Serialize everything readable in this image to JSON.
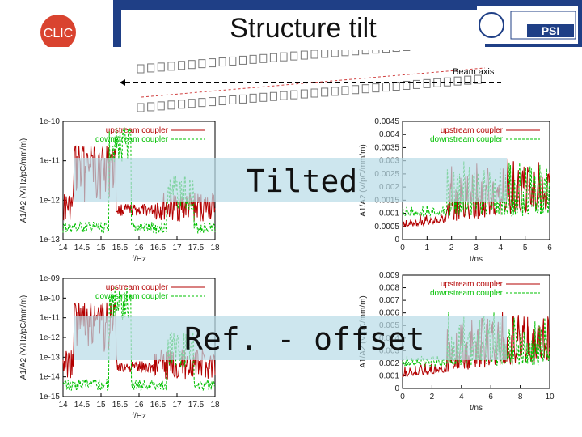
{
  "slide": {
    "title": "Structure tilt",
    "beam_label": "Beam axis",
    "label_tilted": "Tilted",
    "label_ref": "Ref. - offset",
    "logo_left_text": "CLIC",
    "logo_right_text": "PSI"
  },
  "colors": {
    "header": "#1f3f86",
    "upstream": "#b30000",
    "downstream": "#00c000",
    "band": "#b8dbe7"
  },
  "chart_data": [
    {
      "type": "line",
      "yscale": "log",
      "xlabel": "f/Hz",
      "ylabel": "A1/A2 (V/Hz/pC/mm/m)",
      "x_ticks": [
        "14",
        "14.5",
        "15",
        "15.5",
        "16",
        "16.5",
        "17",
        "17.5",
        "18"
      ],
      "y_ticks": [
        "1e-10",
        "1e-11",
        "1e-12",
        "1e-13"
      ],
      "xlim": [
        14,
        18
      ],
      "legend": [
        "upstream coupler",
        "downstream coupler"
      ],
      "legend_position": "top-right"
    },
    {
      "type": "line",
      "xlabel": "t/ns",
      "ylabel": "A1/A2 (V/pC/mm/m)",
      "x_ticks": [
        "0",
        "1",
        "2",
        "3",
        "4",
        "5",
        "6"
      ],
      "y_ticks": [
        "0.0045",
        "0.004",
        "0.0035",
        "0.003",
        "0.0025",
        "0.002",
        "0.0015",
        "0.001",
        "0.0005",
        "0"
      ],
      "xlim": [
        0,
        6
      ],
      "ylim": [
        0,
        0.0045
      ],
      "legend": [
        "upstream coupler",
        "downstream coupler"
      ],
      "legend_position": "top-right"
    },
    {
      "type": "line",
      "yscale": "log",
      "xlabel": "f/Hz",
      "ylabel": "A1/A2 (V/Hz/pC/mm/m)",
      "x_ticks": [
        "14",
        "14.5",
        "15",
        "15.5",
        "16",
        "16.5",
        "17",
        "17.5",
        "18"
      ],
      "y_ticks": [
        "1e-09",
        "1e-10",
        "1e-11",
        "1e-12",
        "1e-13",
        "1e-14",
        "1e-15"
      ],
      "xlim": [
        14,
        18
      ],
      "legend": [
        "upstream coupler",
        "downstream coupler"
      ],
      "legend_position": "top-right"
    },
    {
      "type": "line",
      "xlabel": "t/ns",
      "ylabel": "A1/A2 (V/pC/mm/m)",
      "x_ticks": [
        "0",
        "2",
        "4",
        "6",
        "8",
        "10"
      ],
      "y_ticks": [
        "0.009",
        "0.008",
        "0.007",
        "0.006",
        "0.005",
        "0.004",
        "0.003",
        "0.002",
        "0.001",
        "0"
      ],
      "xlim": [
        0,
        10
      ],
      "ylim": [
        0,
        0.009
      ],
      "legend": [
        "upstream coupler",
        "downstream coupler"
      ],
      "legend_position": "top-right"
    }
  ]
}
